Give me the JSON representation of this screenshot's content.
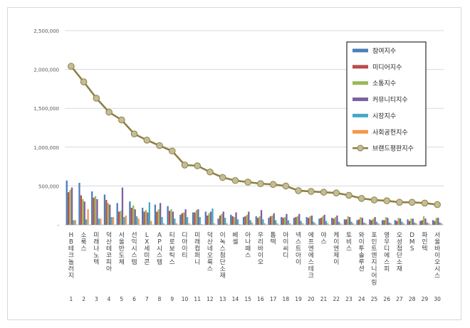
{
  "chart_data": {
    "type": "bar",
    "title": "",
    "xlabel": "",
    "ylabel": "",
    "ylim": [
      0,
      2500000
    ],
    "y_ticks": [
      0,
      500000,
      1000000,
      1500000,
      2000000,
      2500000
    ],
    "y_tick_labels": [
      "-",
      "500,000",
      "1,000,000",
      "1,500,000",
      "2,000,000",
      "2,500,000"
    ],
    "grid": true,
    "legend_position": "top-right",
    "categories": [
      "HB테크놀러지",
      "소룩스",
      "미래나노텍",
      "덕산테코피아",
      "서울반도체",
      "선익시스템",
      "LX세미콘",
      "AP시스템",
      "티로보틱스",
      "디아이티",
      "미래컴퍼니",
      "덕산네오룩스",
      "이녹스첨단소재",
      "베셀",
      "아나패스",
      "우리바이오",
      "톱텍",
      "아이씨디",
      "넥스트아이",
      "에프엔에스테크",
      "야스",
      "케이엔제이",
      "토비스",
      "와이투솔루션",
      "포인트엔지니어링",
      "영우디에스피",
      "오성첨단소재",
      "DMS",
      "파인텍",
      "서울바이오시스"
    ],
    "category_numbers": [
      "1",
      "2",
      "3",
      "4",
      "5",
      "6",
      "7",
      "8",
      "9",
      "10",
      "11",
      "12",
      "13",
      "14",
      "15",
      "16",
      "17",
      "18",
      "19",
      "20",
      "21",
      "22",
      "23",
      "24",
      "25",
      "26",
      "27",
      "28",
      "29",
      "30"
    ],
    "series": [
      {
        "name": "참여지수",
        "color": "#4a7ebb",
        "kind": "bar",
        "values": [
          570000,
          540000,
          430000,
          390000,
          280000,
          300000,
          220000,
          260000,
          240000,
          130000,
          160000,
          170000,
          80000,
          130000,
          100000,
          110000,
          90000,
          100000,
          90000,
          100000,
          80000,
          90000,
          70000,
          60000,
          70000,
          60000,
          60000,
          70000,
          50000,
          60000
        ]
      },
      {
        "name": "미디어지수",
        "color": "#be4b48",
        "kind": "bar",
        "values": [
          420000,
          380000,
          350000,
          320000,
          170000,
          220000,
          170000,
          170000,
          180000,
          150000,
          160000,
          120000,
          120000,
          110000,
          110000,
          90000,
          110000,
          90000,
          100000,
          90000,
          90000,
          80000,
          70000,
          70000,
          60000,
          60000,
          50000,
          50000,
          60000,
          50000
        ]
      },
      {
        "name": "소통지수",
        "color": "#98b954",
        "kind": "bar",
        "values": [
          450000,
          330000,
          370000,
          280000,
          180000,
          250000,
          190000,
          200000,
          200000,
          160000,
          190000,
          150000,
          140000,
          100000,
          130000,
          110000,
          120000,
          100000,
          110000,
          110000,
          110000,
          100000,
          110000,
          100000,
          80000,
          100000,
          90000,
          80000,
          110000,
          90000
        ]
      },
      {
        "name": "커뮤니티지수",
        "color": "#7d60a0",
        "kind": "bar",
        "values": [
          480000,
          300000,
          330000,
          260000,
          480000,
          200000,
          160000,
          280000,
          170000,
          200000,
          200000,
          170000,
          170000,
          160000,
          170000,
          190000,
          150000,
          140000,
          140000,
          120000,
          130000,
          120000,
          100000,
          90000,
          100000,
          90000,
          80000,
          80000,
          80000,
          90000
        ]
      },
      {
        "name": "시장지수",
        "color": "#46aac4",
        "kind": "bar",
        "values": [
          60000,
          70000,
          80000,
          100000,
          100000,
          110000,
          290000,
          100000,
          80000,
          100000,
          100000,
          210000,
          90000,
          70000,
          60000,
          70000,
          60000,
          60000,
          50000,
          40000,
          50000,
          40000,
          40000,
          30000,
          40000,
          30000,
          40000,
          30000,
          30000,
          30000
        ]
      },
      {
        "name": "사회공헌지수",
        "color": "#f79646",
        "kind": "bar",
        "values": [
          60000,
          200000,
          80000,
          100000,
          120000,
          80000,
          50000,
          20000,
          20000,
          20000,
          10000,
          20000,
          20000,
          10000,
          30000,
          20000,
          20000,
          20000,
          20000,
          20000,
          20000,
          20000,
          20000,
          20000,
          20000,
          20000,
          20000,
          20000,
          20000,
          20000
        ]
      },
      {
        "name": "브랜드평판지수",
        "color": "#8c8045",
        "marker_fill": "#c4bc96",
        "kind": "line",
        "values": [
          2040000,
          1840000,
          1630000,
          1450000,
          1350000,
          1170000,
          1090000,
          1020000,
          950000,
          770000,
          760000,
          680000,
          610000,
          570000,
          550000,
          530000,
          520000,
          500000,
          440000,
          430000,
          420000,
          410000,
          380000,
          340000,
          320000,
          310000,
          290000,
          290000,
          280000,
          260000
        ]
      }
    ]
  }
}
